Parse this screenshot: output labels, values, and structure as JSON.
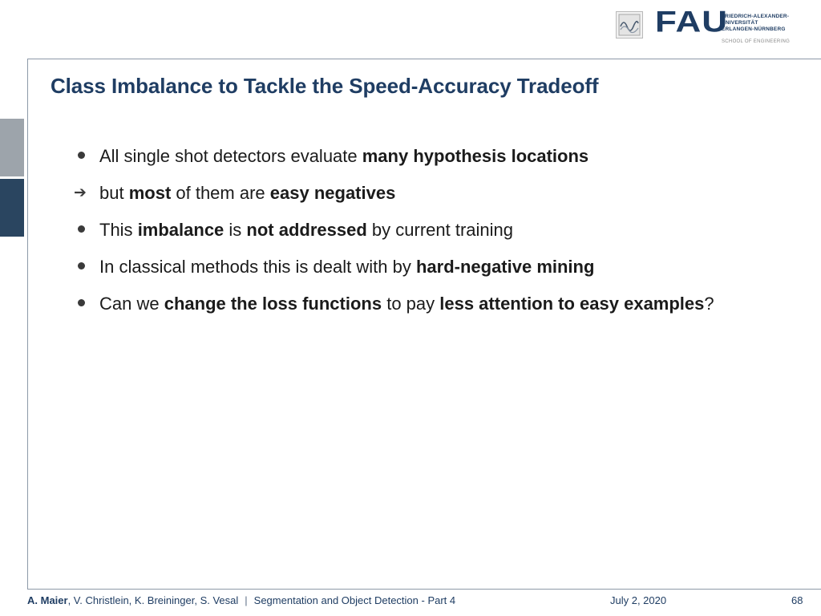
{
  "header": {
    "logo_text": "FAU",
    "university_lines": [
      "FRIEDRICH-ALEXANDER-",
      "UNIVERSITÄT",
      "ERLANGEN-NÜRNBERG"
    ],
    "school": "SCHOOL OF ENGINEERING",
    "brand_color": "#1f3d63"
  },
  "slide": {
    "title": "Class Imbalance to Tackle the Speed-Accuracy Tradeoff",
    "bullets": [
      {
        "marker": "dot",
        "parts": [
          {
            "t": "All single shot detectors evaluate ",
            "b": false
          },
          {
            "t": "many hypothesis locations",
            "b": true
          }
        ]
      },
      {
        "marker": "arrow",
        "parts": [
          {
            "t": "but ",
            "b": false
          },
          {
            "t": "most",
            "b": true
          },
          {
            "t": " of them are ",
            "b": false
          },
          {
            "t": "easy negatives",
            "b": true
          }
        ]
      },
      {
        "marker": "dot",
        "parts": [
          {
            "t": "This ",
            "b": false
          },
          {
            "t": "imbalance",
            "b": true
          },
          {
            "t": " is ",
            "b": false
          },
          {
            "t": "not addressed",
            "b": true
          },
          {
            "t": " by current training",
            "b": false
          }
        ]
      },
      {
        "marker": "dot",
        "parts": [
          {
            "t": "In classical methods this is dealt with by ",
            "b": false
          },
          {
            "t": "hard-negative mining",
            "b": true
          }
        ]
      },
      {
        "marker": "dot",
        "parts": [
          {
            "t": "Can we ",
            "b": false
          },
          {
            "t": "change the loss functions",
            "b": true
          },
          {
            "t": " to pay ",
            "b": false
          },
          {
            "t": "less attention to easy examples",
            "b": true
          },
          {
            "t": "?",
            "b": false
          }
        ]
      }
    ]
  },
  "footer": {
    "lead_author": "A. Maier",
    "other_authors": ", V. Christlein, K. Breininger, S. Vesal",
    "separator": "|",
    "lecture": "Segmentation and Object Detection - Part 4",
    "date": "July 2, 2020",
    "page": "68"
  }
}
